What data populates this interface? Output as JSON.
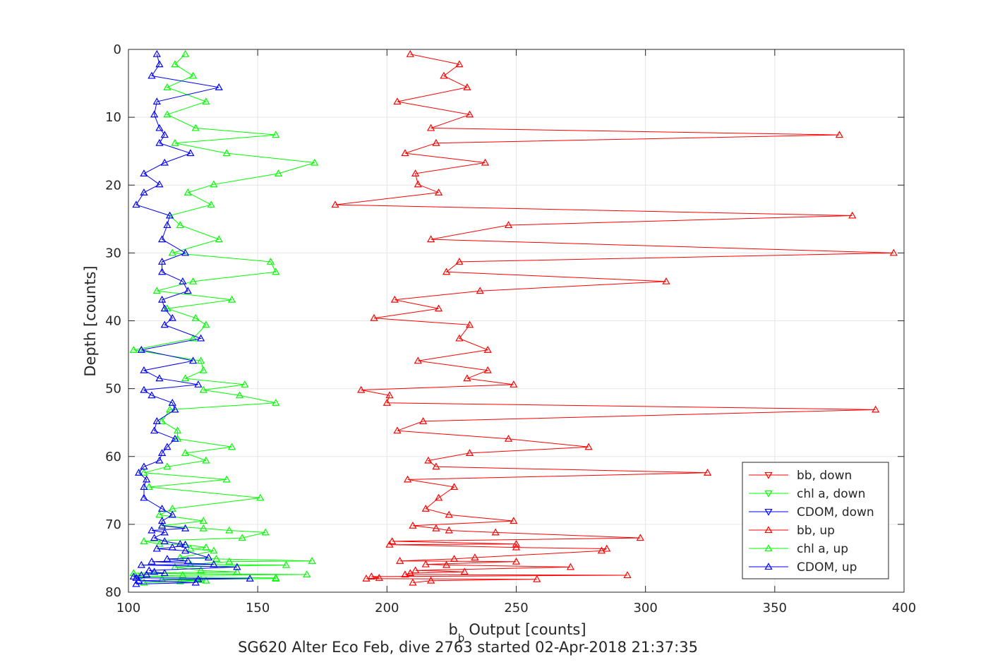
{
  "chart_data": {
    "type": "line",
    "title": "",
    "xlabel": "Output [counts]",
    "xlabel_prefix": "b",
    "xlabel_subscript": "b",
    "ylabel": "Depth [counts]",
    "caption": "SG620 Alter Eco Feb, dive 2763 started 02-Apr-2018 21:37:35",
    "xlim": [
      100,
      400
    ],
    "ylim": [
      0,
      80
    ],
    "y_reversed": true,
    "xticks": [
      "100",
      "150",
      "200",
      "250",
      "300",
      "350",
      "400"
    ],
    "yticks": [
      "0",
      "10",
      "20",
      "30",
      "40",
      "50",
      "60",
      "70",
      "80"
    ],
    "grid": true,
    "legend_position": "bottom-right",
    "series": [
      {
        "name": "bb, down",
        "color": "#ff0000",
        "marker": "down",
        "x": [],
        "y": []
      },
      {
        "name": "chl a, down",
        "color": "#00ff00",
        "marker": "down",
        "x": [],
        "y": []
      },
      {
        "name": "CDOM, down",
        "color": "#0000ff",
        "marker": "down",
        "x": [],
        "y": []
      },
      {
        "name": "bb, up",
        "color": "#ff0000",
        "marker": "up",
        "x": [
          209,
          228,
          222,
          231,
          204,
          232,
          217,
          375,
          219,
          207,
          238,
          211,
          212,
          220,
          180,
          380,
          247,
          217,
          396,
          228,
          223,
          308,
          236,
          203,
          220,
          195,
          232,
          228,
          239,
          212,
          239,
          231,
          249,
          190,
          201,
          200,
          389,
          214,
          204,
          247,
          278,
          232,
          216,
          219,
          324,
          208,
          226,
          220,
          215,
          224,
          249,
          210,
          219,
          224,
          242,
          298,
          202,
          250,
          201,
          250,
          285,
          283,
          234,
          226,
          205,
          250,
          215,
          223,
          271,
          211,
          230,
          209,
          207,
          293,
          194,
          197,
          192,
          258,
          217,
          210
        ],
        "y": [
          0.7,
          2.2,
          3.9,
          5.6,
          7.7,
          9.6,
          11.6,
          12.6,
          13.8,
          15.3,
          16.7,
          18.3,
          19.9,
          21.1,
          22.9,
          24.5,
          25.9,
          28.0,
          30.0,
          31.3,
          32.8,
          34.2,
          35.6,
          36.9,
          38.2,
          39.6,
          40.6,
          42.6,
          44.3,
          45.9,
          47.3,
          48.5,
          49.4,
          50.2,
          51.0,
          52.1,
          53.1,
          54.8,
          56.2,
          57.4,
          58.6,
          59.5,
          60.6,
          61.5,
          62.4,
          63.4,
          64.5,
          66.1,
          67.7,
          68.6,
          69.5,
          70.2,
          70.6,
          70.9,
          71.2,
          72.0,
          72.5,
          72.9,
          73.0,
          73.4,
          73.6,
          73.9,
          74.9,
          75.1,
          75.4,
          75.5,
          75.9,
          76.0,
          76.3,
          76.8,
          77.0,
          77.2,
          77.4,
          77.5,
          77.7,
          77.9,
          78.0,
          78.1,
          78.3,
          78.6
        ]
      },
      {
        "name": "chl a, up",
        "color": "#00ff00",
        "marker": "up",
        "x": [
          122,
          118,
          125,
          115,
          130,
          115,
          126,
          157,
          118,
          138,
          172,
          158,
          133,
          123,
          132,
          116,
          120,
          135,
          117,
          155,
          157,
          125,
          111,
          140,
          115,
          126,
          130,
          125,
          102,
          128,
          129,
          122,
          145,
          129,
          143,
          157,
          116,
          113,
          119,
          119,
          140,
          122,
          130,
          115,
          106,
          138,
          108,
          151,
          117,
          112,
          129,
          113,
          129,
          139,
          153,
          144,
          106,
          112,
          122,
          130,
          124,
          133,
          120,
          134,
          171,
          139,
          124,
          161,
          118,
          128,
          142,
          102,
          169,
          121,
          104,
          157,
          157,
          113,
          130,
          106,
          120,
          128
        ],
        "y": [
          0.7,
          2.2,
          3.9,
          5.6,
          7.7,
          9.6,
          11.6,
          12.6,
          13.8,
          15.3,
          16.7,
          18.3,
          19.9,
          21.1,
          22.9,
          24.5,
          25.9,
          28.0,
          30.0,
          31.3,
          32.8,
          34.2,
          35.6,
          36.9,
          38.2,
          39.6,
          40.6,
          42.6,
          44.3,
          45.9,
          47.3,
          48.5,
          49.4,
          50.2,
          51.0,
          52.1,
          53.1,
          54.8,
          56.2,
          57.4,
          58.6,
          59.5,
          60.6,
          61.5,
          62.4,
          63.4,
          64.5,
          66.1,
          67.7,
          68.6,
          69.5,
          70.2,
          70.6,
          70.9,
          71.2,
          72.0,
          72.5,
          72.9,
          73.0,
          73.4,
          73.6,
          73.9,
          74.9,
          75.1,
          75.4,
          75.5,
          75.9,
          76.0,
          76.3,
          76.8,
          77.0,
          77.2,
          77.4,
          77.5,
          77.7,
          77.9,
          78.0,
          78.1,
          78.3,
          78.6,
          78.4,
          78.2
        ]
      },
      {
        "name": "CDOM, up",
        "color": "#0000ff",
        "marker": "up",
        "x": [
          111,
          112,
          109,
          135,
          111,
          110,
          112,
          114,
          112,
          124,
          114,
          106,
          112,
          106,
          103,
          116,
          115,
          113,
          122,
          113,
          113,
          121,
          123,
          113,
          114,
          117,
          114,
          128,
          105,
          125,
          106,
          112,
          127,
          106,
          109,
          117,
          118,
          111,
          110,
          118,
          115,
          113,
          112,
          106,
          104,
          107,
          106,
          106,
          113,
          117,
          113,
          113,
          122,
          109,
          114,
          110,
          114,
          120,
          122,
          117,
          111,
          122,
          131,
          115,
          123,
          109,
          133,
          105,
          142,
          108,
          110,
          114,
          107,
          105,
          102,
          103,
          147,
          127,
          104,
          126,
          103
        ],
        "y": [
          0.7,
          2.2,
          3.9,
          5.6,
          7.7,
          9.6,
          11.6,
          12.6,
          13.8,
          15.3,
          16.7,
          18.3,
          19.9,
          21.1,
          22.9,
          24.5,
          25.9,
          28.0,
          30.0,
          31.3,
          32.8,
          34.2,
          35.6,
          36.9,
          38.2,
          39.6,
          40.6,
          42.6,
          44.3,
          45.9,
          47.3,
          48.5,
          49.4,
          50.2,
          51.0,
          52.1,
          53.1,
          54.8,
          56.2,
          57.4,
          58.6,
          59.5,
          60.6,
          61.5,
          62.4,
          63.4,
          64.5,
          66.1,
          67.7,
          68.6,
          69.5,
          70.2,
          70.6,
          70.9,
          71.2,
          72.0,
          72.5,
          72.9,
          73.0,
          73.4,
          73.6,
          73.9,
          74.9,
          75.1,
          75.4,
          75.5,
          75.9,
          76.0,
          76.3,
          76.8,
          77.0,
          77.2,
          77.4,
          77.5,
          77.7,
          77.9,
          78.0,
          78.1,
          78.3,
          78.6,
          78.8
        ]
      }
    ]
  }
}
